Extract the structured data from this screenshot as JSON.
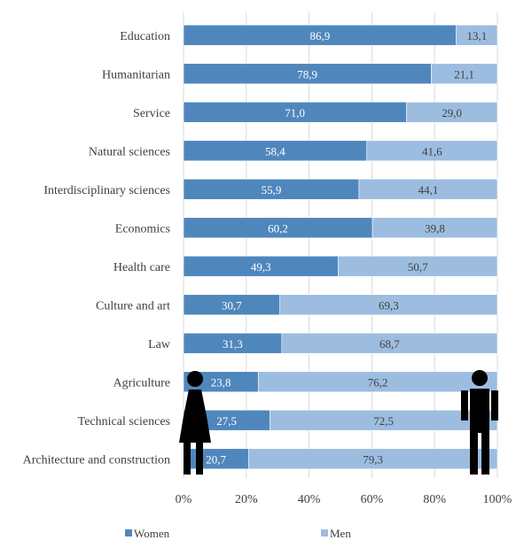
{
  "chart_data": {
    "type": "bar",
    "orientation": "horizontal",
    "stacked": true,
    "categories": [
      "Education",
      "Humanitarian",
      "Service",
      "Natural sciences",
      "Interdisciplinary sciences",
      "Economics",
      "Health care",
      "Culture and art",
      "Law",
      "Agriculture",
      "Technical sciences",
      "Architecture and construction"
    ],
    "series": [
      {
        "name": "Women",
        "color": "#4f87bd",
        "values": [
          86.9,
          78.9,
          71.0,
          58.4,
          55.9,
          60.2,
          49.3,
          30.7,
          31.3,
          23.8,
          27.5,
          20.7
        ],
        "labels": [
          "86,9",
          "78,9",
          "71,0",
          "58,4",
          "55,9",
          "60,2",
          "49,3",
          "30,7",
          "31,3",
          "23,8",
          "27,5",
          "20,7"
        ]
      },
      {
        "name": "Men",
        "color": "#9dbde0",
        "values": [
          13.1,
          21.1,
          29.0,
          41.6,
          44.1,
          39.8,
          50.7,
          69.3,
          68.7,
          76.2,
          72.5,
          79.3
        ],
        "labels": [
          "13,1",
          "21,1",
          "29,0",
          "41,6",
          "44,1",
          "39,8",
          "50,7",
          "69,3",
          "68,7",
          "76,2",
          "72,5",
          "79,3"
        ]
      }
    ],
    "xlim": [
      0,
      100
    ],
    "x_ticks": [
      "0%",
      "20%",
      "40%",
      "60%",
      "80%",
      "100%"
    ],
    "title": "",
    "xlabel": "",
    "ylabel": "",
    "grid": true,
    "legend_position": "bottom",
    "icons": [
      "woman-figure-icon",
      "man-figure-icon"
    ]
  }
}
